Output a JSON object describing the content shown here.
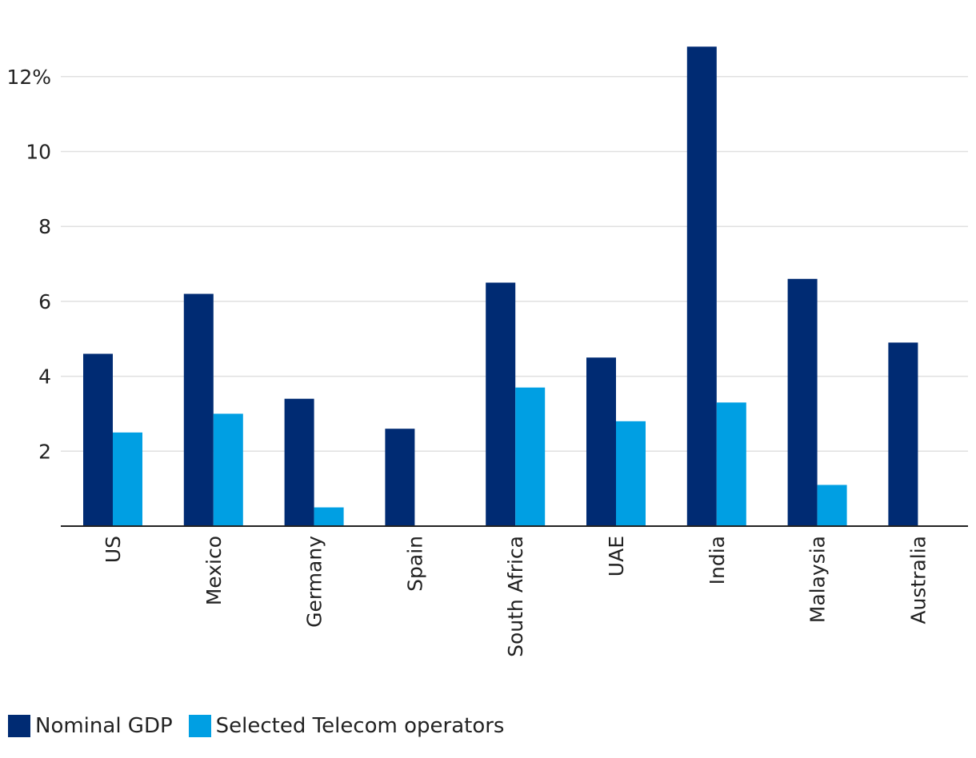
{
  "chart_data": {
    "type": "bar",
    "title": "",
    "xlabel": "",
    "ylabel": "",
    "ylim": [
      0,
      13
    ],
    "yticks": [
      2,
      4,
      6,
      8,
      10,
      12
    ],
    "ytick_labels": [
      "2",
      "4",
      "6",
      "8",
      "10",
      "12%"
    ],
    "categories": [
      "US",
      "Mexico",
      "Germany",
      "Spain",
      "South Africa",
      "UAE",
      "India",
      "Malaysia",
      "Australia"
    ],
    "series": [
      {
        "name": "Nominal GDP",
        "color": "#002b73",
        "values": [
          4.6,
          6.2,
          3.4,
          2.6,
          6.5,
          4.5,
          12.8,
          6.6,
          4.9
        ]
      },
      {
        "name": "Selected Telecom operators",
        "color": "#009fe3",
        "values": [
          2.5,
          3.0,
          0.5,
          null,
          3.7,
          2.8,
          3.3,
          1.1,
          null
        ]
      }
    ],
    "grid": true,
    "legend": "bottom-left"
  }
}
